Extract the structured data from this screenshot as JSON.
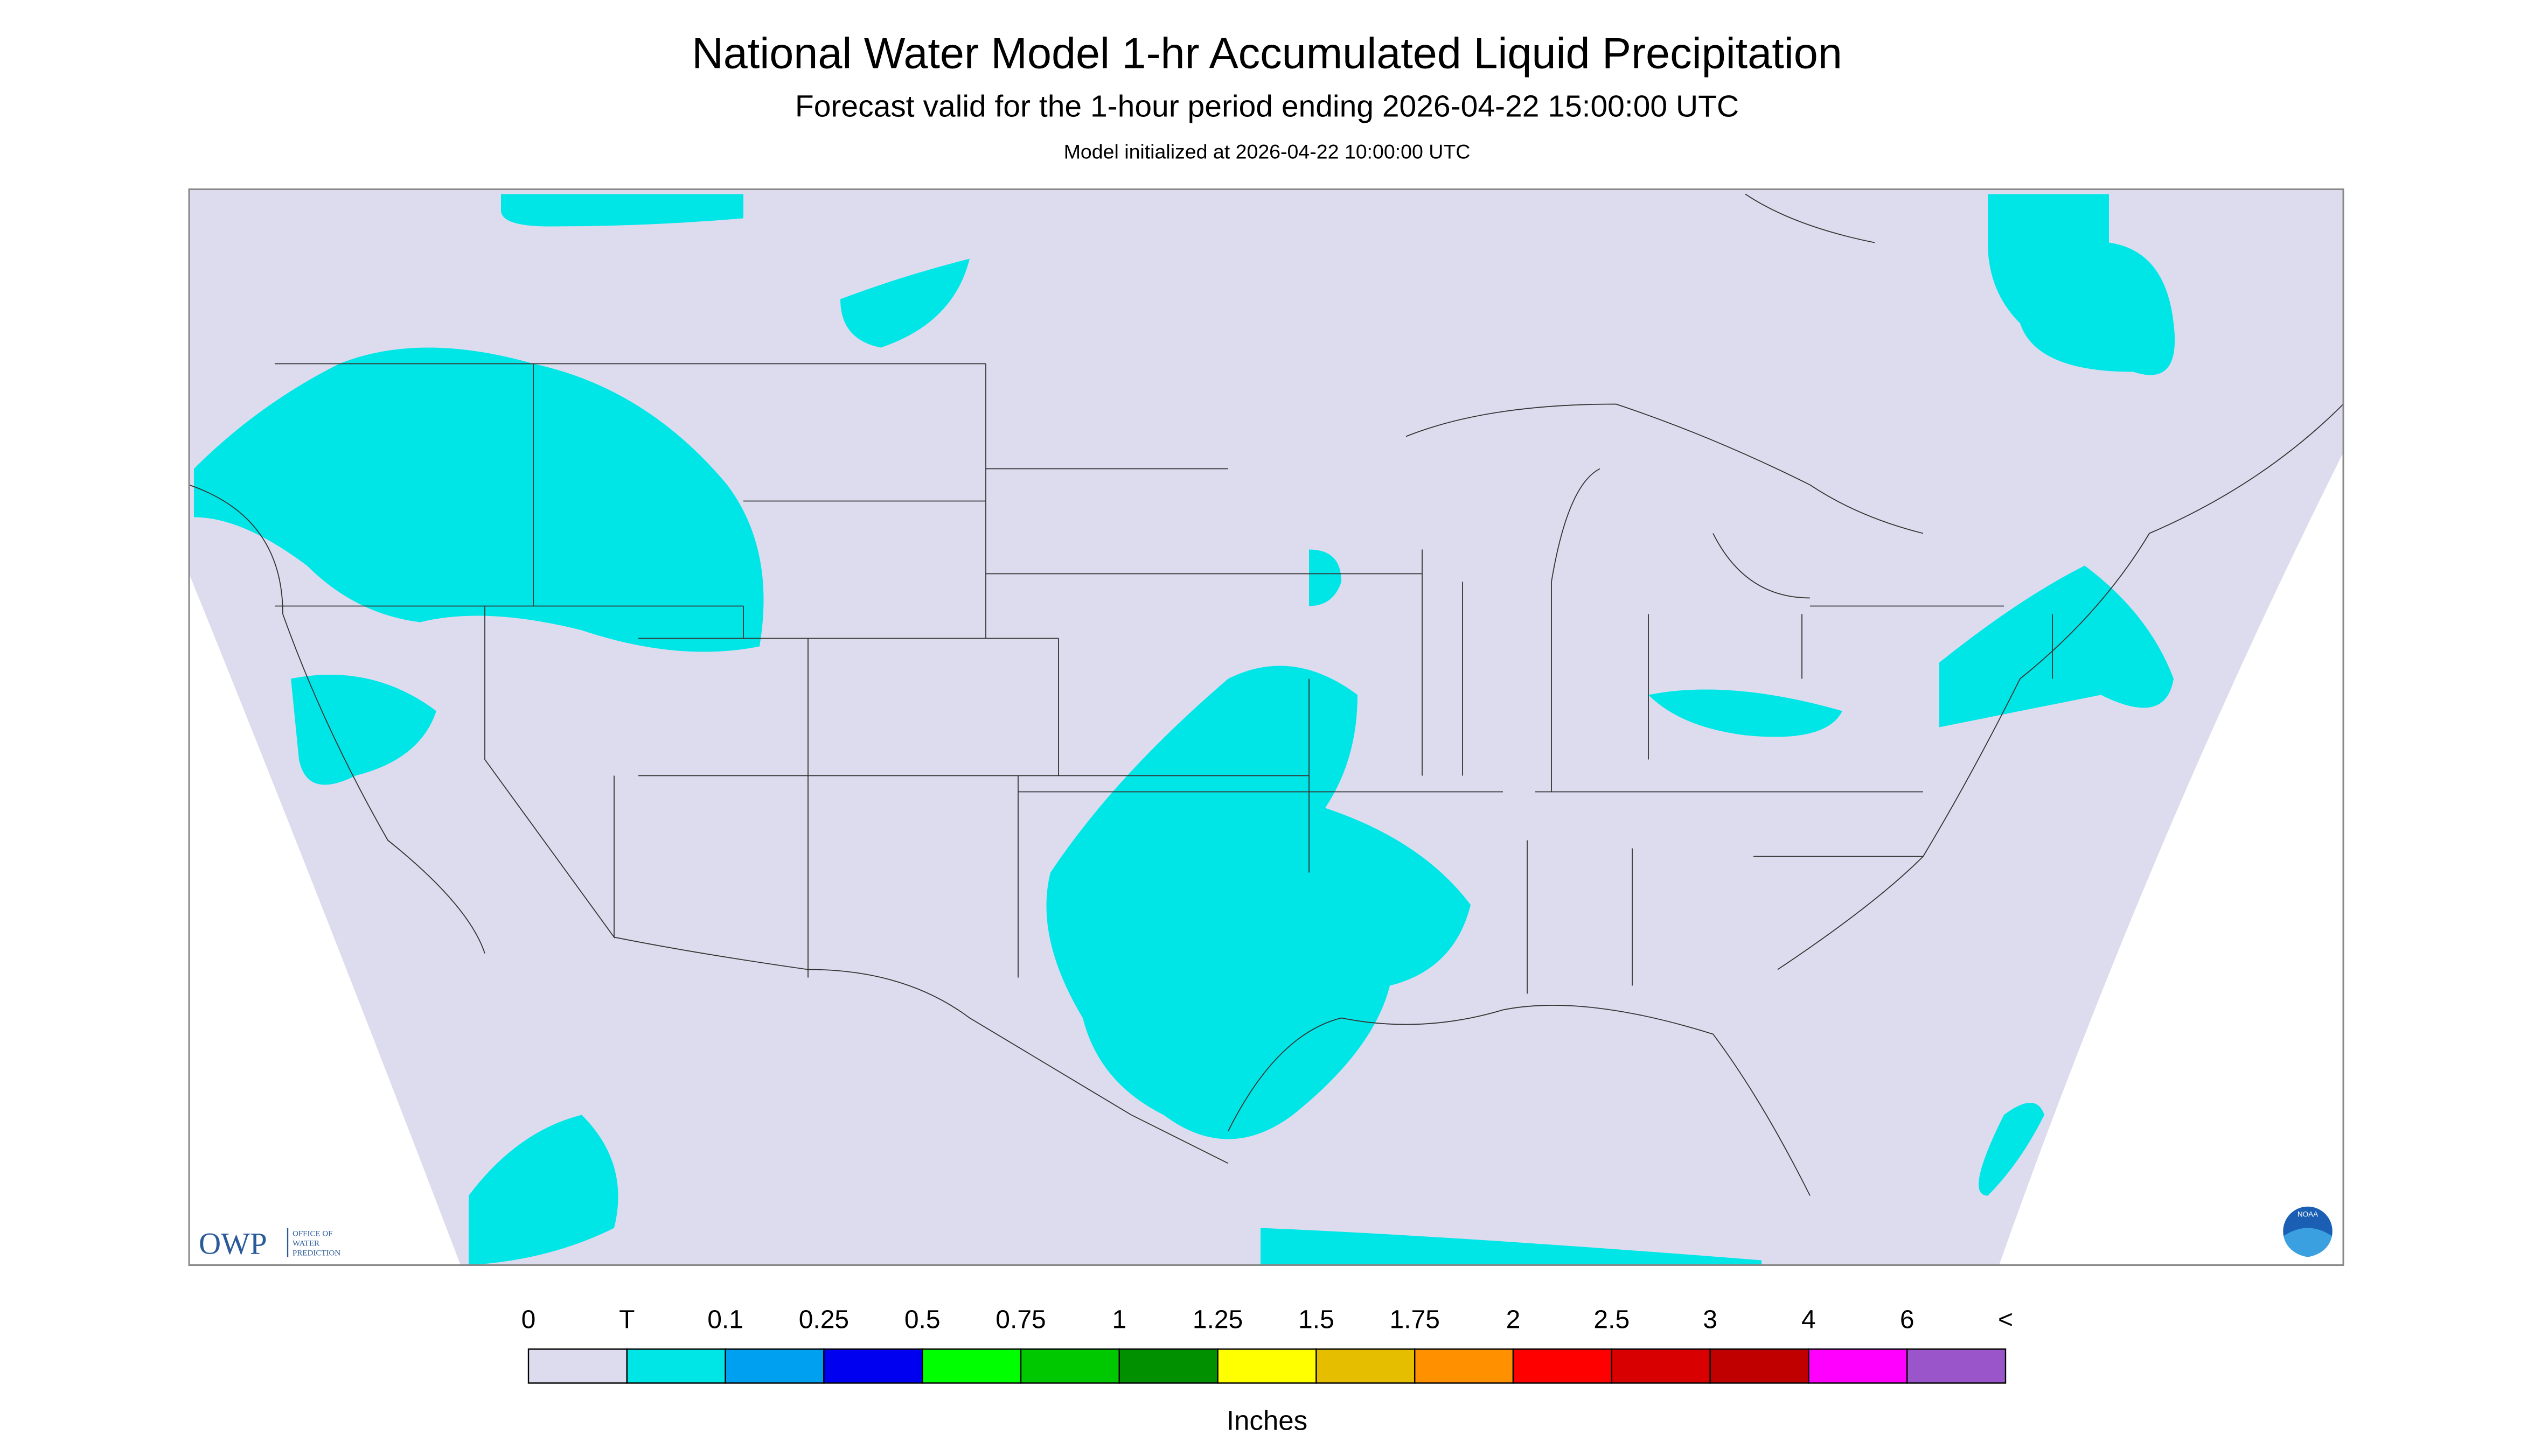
{
  "header": {
    "title": "National Water Model 1-hr Accumulated Liquid Precipitation",
    "subtitle": "Forecast valid for the 1-hour period ending 2026-04-22 15:00:00 UTC",
    "note": "Model initialized at 2026-04-22 10:00:00 UTC"
  },
  "legend": {
    "labels": [
      "0",
      "T",
      "0.1",
      "0.25",
      "0.5",
      "0.75",
      "1",
      "1.25",
      "1.5",
      "1.75",
      "2",
      "2.5",
      "3",
      "4",
      "6",
      "<"
    ],
    "colors": [
      "#dcdcee",
      "#00e6e6",
      "#00a0f0",
      "#0000f0",
      "#00ff00",
      "#00c800",
      "#009000",
      "#ffff00",
      "#e6be00",
      "#ff9000",
      "#ff0000",
      "#d80000",
      "#c00000",
      "#ff00ff",
      "#9955c9"
    ],
    "unit": "Inches"
  },
  "logos": {
    "owp": {
      "abbreviation": "OWP",
      "name": [
        "OFFICE OF",
        "WATER",
        "PREDICTION"
      ]
    },
    "noaa": "NOAA"
  }
}
